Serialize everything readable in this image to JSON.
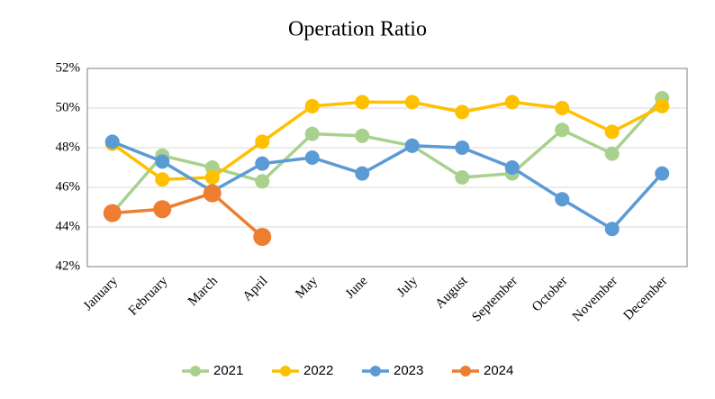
{
  "chart_data": {
    "type": "line",
    "title": "Operation Ratio",
    "categories": [
      "January",
      "February",
      "March",
      "April",
      "May",
      "June",
      "July",
      "August",
      "September",
      "October",
      "November",
      "December"
    ],
    "series": [
      {
        "name": "2021",
        "color": "#a9d18e",
        "values": [
          44.7,
          47.6,
          47.0,
          46.3,
          48.7,
          48.6,
          48.1,
          46.5,
          46.7,
          48.9,
          47.7,
          50.5
        ]
      },
      {
        "name": "2022",
        "color": "#ffc000",
        "values": [
          48.2,
          46.4,
          46.5,
          48.3,
          50.1,
          50.3,
          50.3,
          49.8,
          50.3,
          50.0,
          48.8,
          50.1
        ]
      },
      {
        "name": "2023",
        "color": "#5b9bd5",
        "values": [
          48.3,
          47.3,
          45.8,
          47.2,
          47.5,
          46.7,
          48.1,
          48.0,
          47.0,
          45.4,
          43.9,
          46.7
        ]
      },
      {
        "name": "2024",
        "color": "#ed7d31",
        "values": [
          44.7,
          44.9,
          45.7,
          43.5,
          null,
          null,
          null,
          null,
          null,
          null,
          null,
          null
        ]
      }
    ],
    "ylim": [
      42,
      52
    ],
    "yticks": [
      {
        "value": 42,
        "label": "42%"
      },
      {
        "value": 44,
        "label": "44%"
      },
      {
        "value": 46,
        "label": "46%"
      },
      {
        "value": 48,
        "label": "48%"
      },
      {
        "value": 50,
        "label": "50%"
      },
      {
        "value": 52,
        "label": "52%"
      }
    ],
    "grid": true,
    "legend": "bottom"
  }
}
